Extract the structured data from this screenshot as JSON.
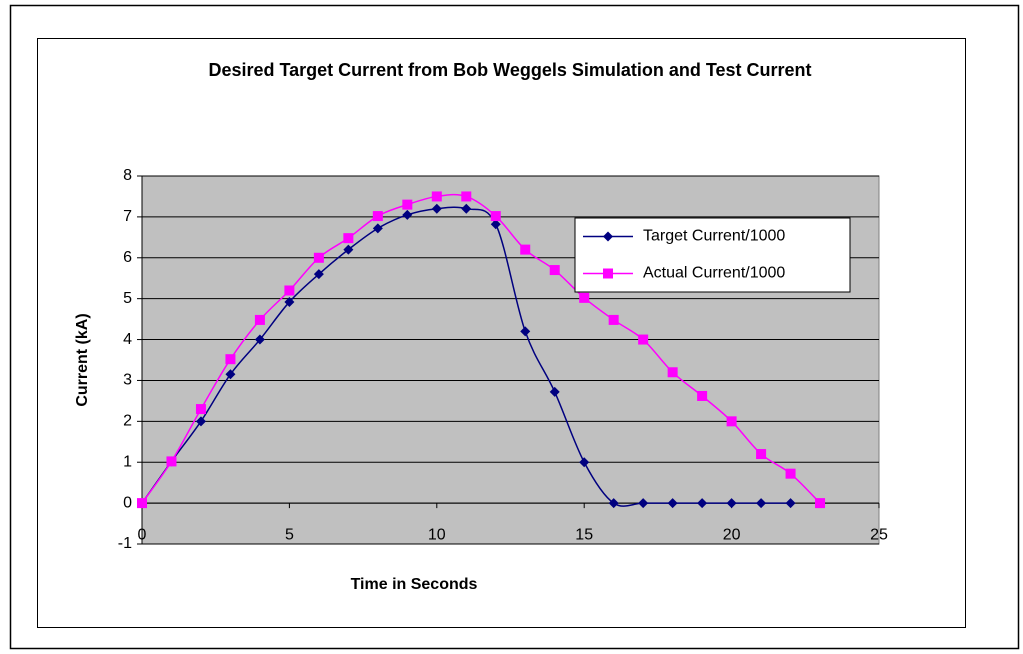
{
  "chart_data": {
    "type": "line",
    "title": "Desired Target Current from Bob Weggels Simulation and Test Current",
    "x_label": "Time in Seconds",
    "y_label": "Current (kA)",
    "series": [
      {
        "name": "Target Current/1000",
        "color": "#000080",
        "marker": "diamond",
        "x": [
          0,
          1,
          2,
          3,
          4,
          5,
          6,
          7,
          8,
          9,
          10,
          11,
          12,
          13,
          14,
          15,
          16,
          17,
          18,
          19,
          20,
          21,
          22
        ],
        "values": [
          0,
          1.02,
          2.0,
          3.15,
          4.0,
          4.92,
          5.6,
          6.2,
          6.72,
          7.05,
          7.2,
          7.2,
          6.82,
          4.2,
          2.72,
          1.0,
          0,
          0,
          0,
          0,
          0,
          0,
          0
        ]
      },
      {
        "name": "Actual Current/1000",
        "color": "#ff00ff",
        "marker": "square",
        "x": [
          0,
          1,
          2,
          3,
          4,
          5,
          6,
          7,
          8,
          9,
          10,
          11,
          12,
          13,
          14,
          15,
          16,
          17,
          18,
          19,
          20,
          21,
          22,
          23
        ],
        "values": [
          0,
          1.02,
          2.3,
          3.52,
          4.48,
          5.2,
          6.0,
          6.48,
          7.02,
          7.3,
          7.5,
          7.5,
          7.02,
          6.2,
          5.7,
          5.02,
          4.48,
          4.0,
          3.2,
          2.62,
          2.0,
          1.2,
          0.72,
          0
        ]
      }
    ],
    "xlim": [
      0,
      25
    ],
    "xticks": [
      0,
      5,
      10,
      15,
      20,
      25
    ],
    "ylim": [
      -1,
      8
    ],
    "yticks": [
      -1,
      0,
      1,
      2,
      3,
      4,
      5,
      6,
      7,
      8
    ],
    "grid": true,
    "smooth": true,
    "plot_background": "#c0c0c0"
  }
}
